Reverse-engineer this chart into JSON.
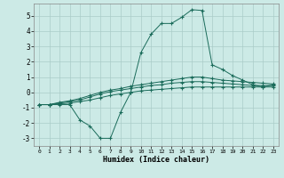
{
  "xlabel": "Humidex (Indice chaleur)",
  "bg_color": "#cceae6",
  "grid_color": "#aaccc8",
  "line_color": "#1a6b5a",
  "xlim": [
    -0.5,
    23.5
  ],
  "ylim": [
    -3.5,
    5.8
  ],
  "xticks": [
    0,
    1,
    2,
    3,
    4,
    5,
    6,
    7,
    8,
    9,
    10,
    11,
    12,
    13,
    14,
    15,
    16,
    17,
    18,
    19,
    20,
    21,
    22,
    23
  ],
  "yticks": [
    -3,
    -2,
    -1,
    0,
    1,
    2,
    3,
    4,
    5
  ],
  "series1_x": [
    0,
    1,
    2,
    3,
    4,
    5,
    6,
    7,
    8,
    9,
    10,
    11,
    12,
    13,
    14,
    15,
    16,
    17,
    18,
    19,
    20,
    21,
    22,
    23
  ],
  "series1_y": [
    -0.8,
    -0.8,
    -0.75,
    -0.7,
    -0.6,
    -0.5,
    -0.35,
    -0.2,
    -0.1,
    0.0,
    0.1,
    0.15,
    0.2,
    0.25,
    0.3,
    0.35,
    0.35,
    0.35,
    0.35,
    0.35,
    0.35,
    0.35,
    0.35,
    0.35
  ],
  "series2_x": [
    0,
    1,
    2,
    3,
    4,
    5,
    6,
    7,
    8,
    9,
    10,
    11,
    12,
    13,
    14,
    15,
    16,
    17,
    18,
    19,
    20,
    21,
    22,
    23
  ],
  "series2_y": [
    -0.8,
    -0.8,
    -0.7,
    -0.6,
    -0.5,
    -0.3,
    -0.1,
    0.05,
    0.15,
    0.25,
    0.35,
    0.45,
    0.5,
    0.6,
    0.65,
    0.7,
    0.7,
    0.65,
    0.6,
    0.55,
    0.5,
    0.45,
    0.45,
    0.45
  ],
  "series3_x": [
    0,
    1,
    2,
    3,
    4,
    5,
    6,
    7,
    8,
    9,
    10,
    11,
    12,
    13,
    14,
    15,
    16,
    17,
    18,
    19,
    20,
    21,
    22,
    23
  ],
  "series3_y": [
    -0.8,
    -0.8,
    -0.65,
    -0.55,
    -0.4,
    -0.2,
    0.0,
    0.15,
    0.25,
    0.4,
    0.5,
    0.6,
    0.7,
    0.8,
    0.9,
    1.0,
    1.0,
    0.9,
    0.8,
    0.75,
    0.7,
    0.65,
    0.6,
    0.55
  ],
  "series4_x": [
    0,
    1,
    2,
    3,
    4,
    5,
    6,
    7,
    8,
    9,
    10,
    11,
    12,
    13,
    14,
    15,
    16,
    17,
    18,
    19,
    20,
    21,
    22,
    23
  ],
  "series4_y": [
    -0.8,
    -0.8,
    -0.8,
    -0.8,
    -1.8,
    -2.2,
    -3.0,
    -3.0,
    -1.3,
    0.0,
    2.6,
    3.8,
    4.5,
    4.5,
    4.9,
    5.4,
    5.35,
    1.8,
    1.5,
    1.1,
    0.8,
    0.5,
    0.35,
    0.5
  ]
}
